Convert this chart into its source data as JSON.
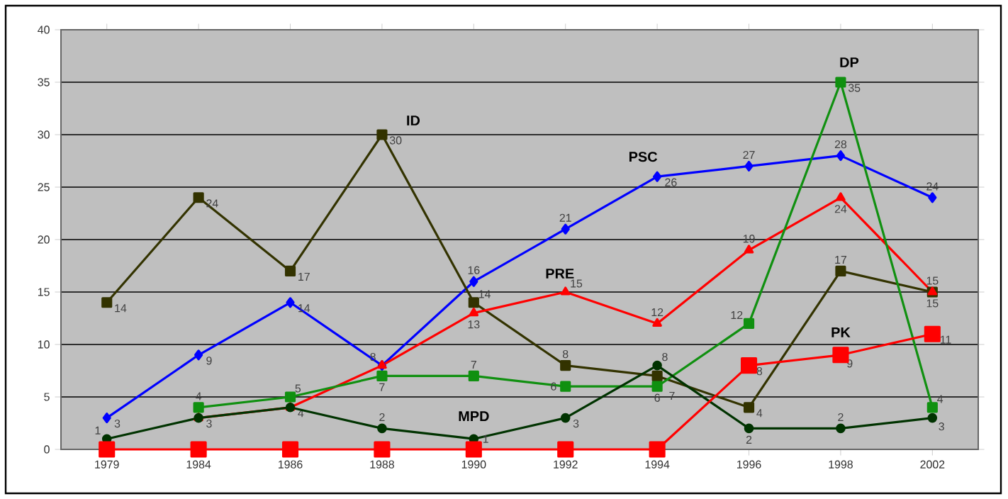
{
  "chart_data": {
    "type": "line",
    "categories": [
      "1979",
      "1984",
      "1986",
      "1988",
      "1990",
      "1992",
      "1994",
      "1996",
      "1998",
      "2002"
    ],
    "ylim": [
      0,
      40
    ],
    "yticks": [
      0,
      5,
      10,
      15,
      20,
      25,
      30,
      35,
      40
    ],
    "grid": "y",
    "series": [
      {
        "name": "PSC",
        "color": "#0000ff",
        "marker": "diamond",
        "values": [
          3,
          9,
          14,
          8,
          16,
          21,
          26,
          27,
          28,
          24
        ],
        "value_labels": [
          "3",
          "9",
          "14",
          "8",
          "16",
          "21",
          "26",
          "27",
          "28",
          "24"
        ]
      },
      {
        "name": "ID",
        "color": "#333300",
        "marker": "square",
        "values": [
          14,
          24,
          17,
          30,
          14,
          8,
          7,
          4,
          17,
          15
        ],
        "value_labels": [
          "14",
          "24",
          "17",
          "30",
          "14",
          "8",
          "7",
          "4",
          "17",
          "15"
        ]
      },
      {
        "name": "PRE",
        "color": "#ff0000",
        "marker": "triangle",
        "values": [
          null,
          3,
          4,
          8,
          13,
          15,
          12,
          19,
          24,
          15
        ],
        "value_labels": [
          null,
          "3",
          "4",
          null,
          "13",
          "15",
          "12",
          "19",
          "24",
          "15"
        ]
      },
      {
        "name": "DP",
        "color": "#109010",
        "marker": "square",
        "values": [
          null,
          4,
          5,
          7,
          7,
          6,
          6,
          12,
          35,
          4
        ],
        "value_labels": [
          null,
          "4",
          "5",
          "7",
          "7",
          "6",
          "6",
          "12",
          "35",
          "4"
        ]
      },
      {
        "name": "MPD",
        "color": "#003300",
        "marker": "circle",
        "values": [
          1,
          3,
          4,
          2,
          1,
          3,
          8,
          2,
          2,
          3
        ],
        "value_labels": [
          "1",
          null,
          null,
          "2",
          "1",
          "3",
          "8",
          "2",
          "2",
          "3"
        ]
      },
      {
        "name": "PK",
        "color": "#ff0000",
        "marker": "square",
        "values": [
          0,
          0,
          0,
          0,
          0,
          0,
          0,
          8,
          9,
          11
        ],
        "value_labels": [
          null,
          null,
          null,
          null,
          null,
          null,
          null,
          "8",
          "9",
          "11"
        ]
      }
    ]
  }
}
